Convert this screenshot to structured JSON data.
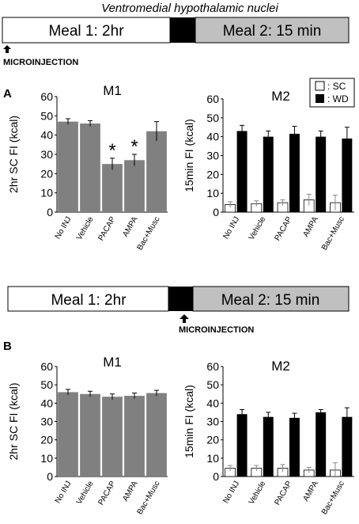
{
  "header": {
    "title": "Ventromedial hypothalamic nuclei"
  },
  "colors": {
    "sc_bar": "#ffffff",
    "wd_bar": "#000000",
    "m1_bar": "#808080",
    "meal1_box": "#ffffff",
    "gap_box": "#000000",
    "meal2_box": "#c0c0c0"
  },
  "timeline_a": {
    "meal1": "Meal 1: 2hr",
    "meal2": "Meal 2: 15 min",
    "injection": "MICROINJECTION",
    "arrow_icon": "up-arrow-icon"
  },
  "timeline_b": {
    "meal1": "Meal 1: 2hr",
    "meal2": "Meal 2: 15 min",
    "injection": "MICROINJECTION",
    "arrow_icon": "up-arrow-icon"
  },
  "panel_a": {
    "label": "A"
  },
  "panel_b": {
    "label": "B"
  },
  "legend": {
    "sc": ": SC",
    "wd": ": WD"
  },
  "chart_data": [
    {
      "id": "a_m1",
      "type": "bar",
      "title": "M1",
      "ylabel": "2hr SC FI (kcal)",
      "ylim": [
        0,
        60
      ],
      "yticks": [
        0,
        10,
        20,
        30,
        40,
        50,
        60
      ],
      "categories": [
        "No INJ",
        "Vehicle",
        "PACAP",
        "AMPA",
        "Bac+Musc"
      ],
      "series": [
        {
          "values": [
            47,
            46,
            25,
            27,
            42
          ],
          "errors": [
            1.5,
            1.5,
            3,
            3,
            5
          ],
          "color": "#808080"
        }
      ],
      "annotations": [
        {
          "category": "PACAP",
          "text": "*"
        },
        {
          "category": "AMPA",
          "text": "*"
        }
      ]
    },
    {
      "id": "a_m2",
      "type": "bar",
      "title": "M2",
      "ylabel": "15min FI (kcal)",
      "ylim": [
        0,
        60
      ],
      "yticks": [
        0,
        10,
        20,
        30,
        40,
        50,
        60
      ],
      "categories": [
        "No INJ",
        "Vehicle",
        "PACAP",
        "AMPA",
        "Bac+Musc"
      ],
      "series": [
        {
          "name": "SC",
          "values": [
            4,
            4.5,
            5,
            6.5,
            5
          ],
          "errors": [
            1.5,
            1.5,
            1.5,
            3,
            4
          ],
          "color": "#ffffff"
        },
        {
          "name": "WD",
          "values": [
            43,
            40,
            41.5,
            40,
            39
          ],
          "errors": [
            3,
            3,
            4,
            3,
            6
          ],
          "color": "#000000"
        }
      ],
      "legend": "top-right"
    },
    {
      "id": "b_m1",
      "type": "bar",
      "title": "M1",
      "ylabel": "2hr SC FI (kcal)",
      "ylim": [
        0,
        60
      ],
      "yticks": [
        0,
        10,
        20,
        30,
        40,
        50,
        60
      ],
      "categories": [
        "No INJ",
        "Vehicle",
        "PACAP",
        "AMPA",
        "Bac+Musc"
      ],
      "series": [
        {
          "values": [
            46,
            45,
            43.5,
            44,
            45.5
          ],
          "errors": [
            1.5,
            1.5,
            1.5,
            1.5,
            1.5
          ],
          "color": "#808080"
        }
      ]
    },
    {
      "id": "b_m2",
      "type": "bar",
      "title": "M2",
      "ylabel": "15min FI (kcal)",
      "ylim": [
        0,
        60
      ],
      "yticks": [
        0,
        10,
        20,
        30,
        40,
        50,
        60
      ],
      "categories": [
        "No INJ",
        "Vehicle",
        "PACAP",
        "AMPA",
        "Bac+Musc"
      ],
      "series": [
        {
          "name": "SC",
          "values": [
            4.5,
            4.5,
            4.5,
            3.5,
            3.5
          ],
          "errors": [
            1.5,
            1.5,
            2,
            1.5,
            4
          ],
          "color": "#ffffff"
        },
        {
          "name": "WD",
          "values": [
            34,
            32.5,
            32,
            35,
            32.5
          ],
          "errors": [
            2.5,
            2.5,
            2.5,
            1.5,
            5
          ],
          "color": "#000000"
        }
      ]
    }
  ]
}
